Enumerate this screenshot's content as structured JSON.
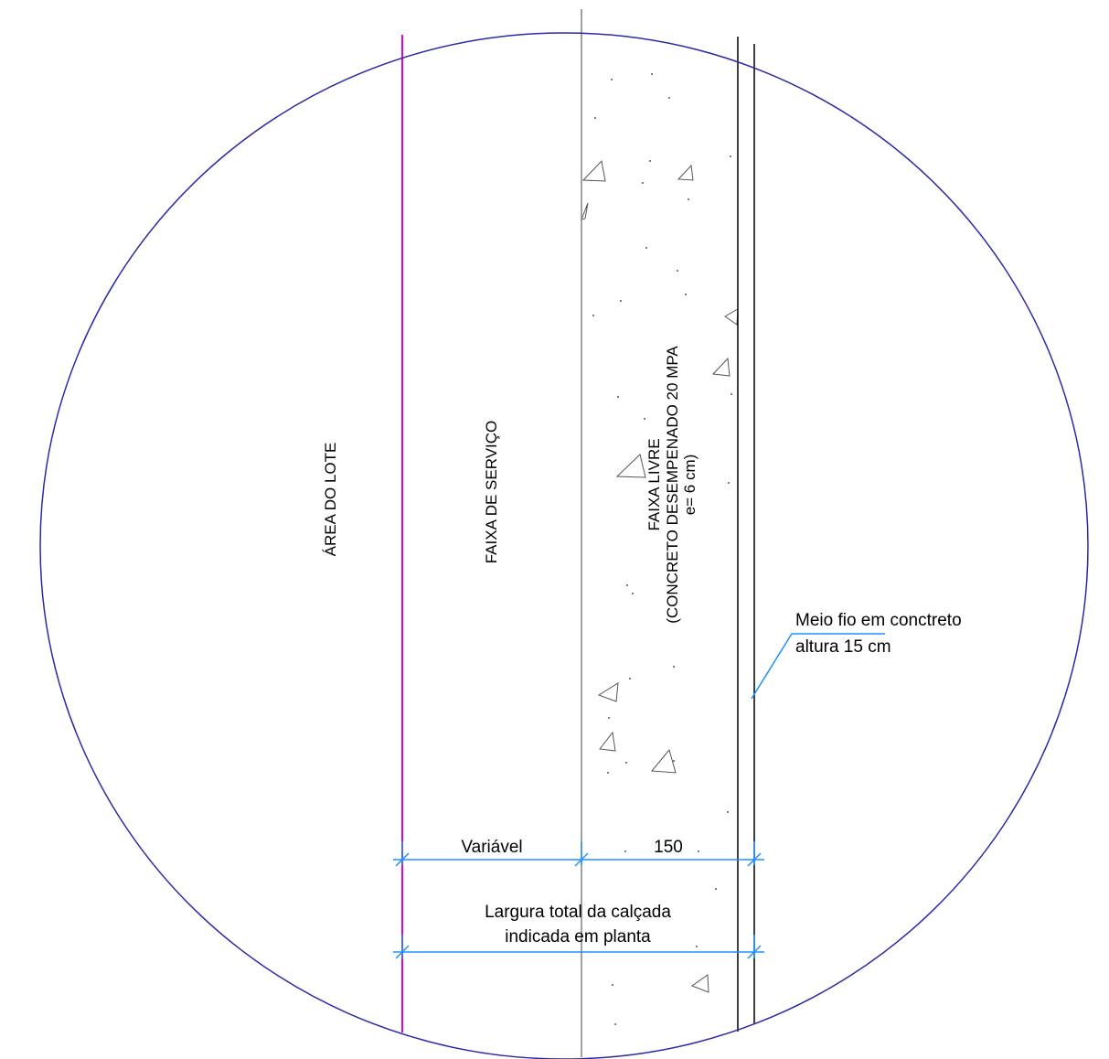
{
  "colors": {
    "circle": "#2a2aa8",
    "lot_line": "#e000e0",
    "service_line": "#808080",
    "curb_lines": "#000000",
    "dimension": "#1e90ff",
    "leader": "#1e90ff",
    "hatch": "#555555"
  },
  "zones": {
    "lot": "ÁREA DO LOTE",
    "service": "FAIXA DE SERVIÇO",
    "free_title": "FAIXA LIVRE",
    "free_material": "(CONCRETO DESEMPENADO 20 MPA",
    "free_thickness": "e= 6 cm)"
  },
  "curb_note": {
    "line1": "Meio fio em conctreto",
    "line2": "altura 15 cm"
  },
  "dimensions": {
    "variable": "Variável",
    "free_width": "150",
    "total_line1": "Largura total da calçada",
    "total_line2": "indicada em planta"
  }
}
